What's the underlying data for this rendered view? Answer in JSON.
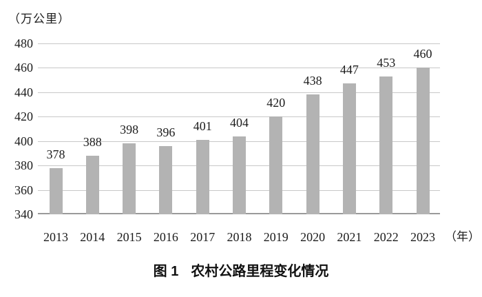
{
  "chart_data": {
    "type": "bar",
    "title": "图1 农村公路里程变化情况",
    "unit_label": "（万公里）",
    "x_unit_label": "（年）",
    "categories": [
      "2013",
      "2014",
      "2015",
      "2016",
      "2017",
      "2018",
      "2019",
      "2020",
      "2021",
      "2022",
      "2023"
    ],
    "values": [
      378,
      388,
      398,
      396,
      401,
      404,
      420,
      438,
      447,
      453,
      460
    ],
    "ylim": [
      340,
      480
    ],
    "yticks": [
      340,
      360,
      380,
      400,
      420,
      440,
      460,
      480
    ],
    "grid": true,
    "data_labels": true,
    "legend_position": "none",
    "bar_color": "#b3b3b3",
    "gridline_color": "#c8c8c8",
    "axis_color": "#9a9a9a",
    "text_color": "#1c1c1c"
  },
  "caption": {
    "label": "图 1",
    "title": "农村公路里程变化情况"
  }
}
